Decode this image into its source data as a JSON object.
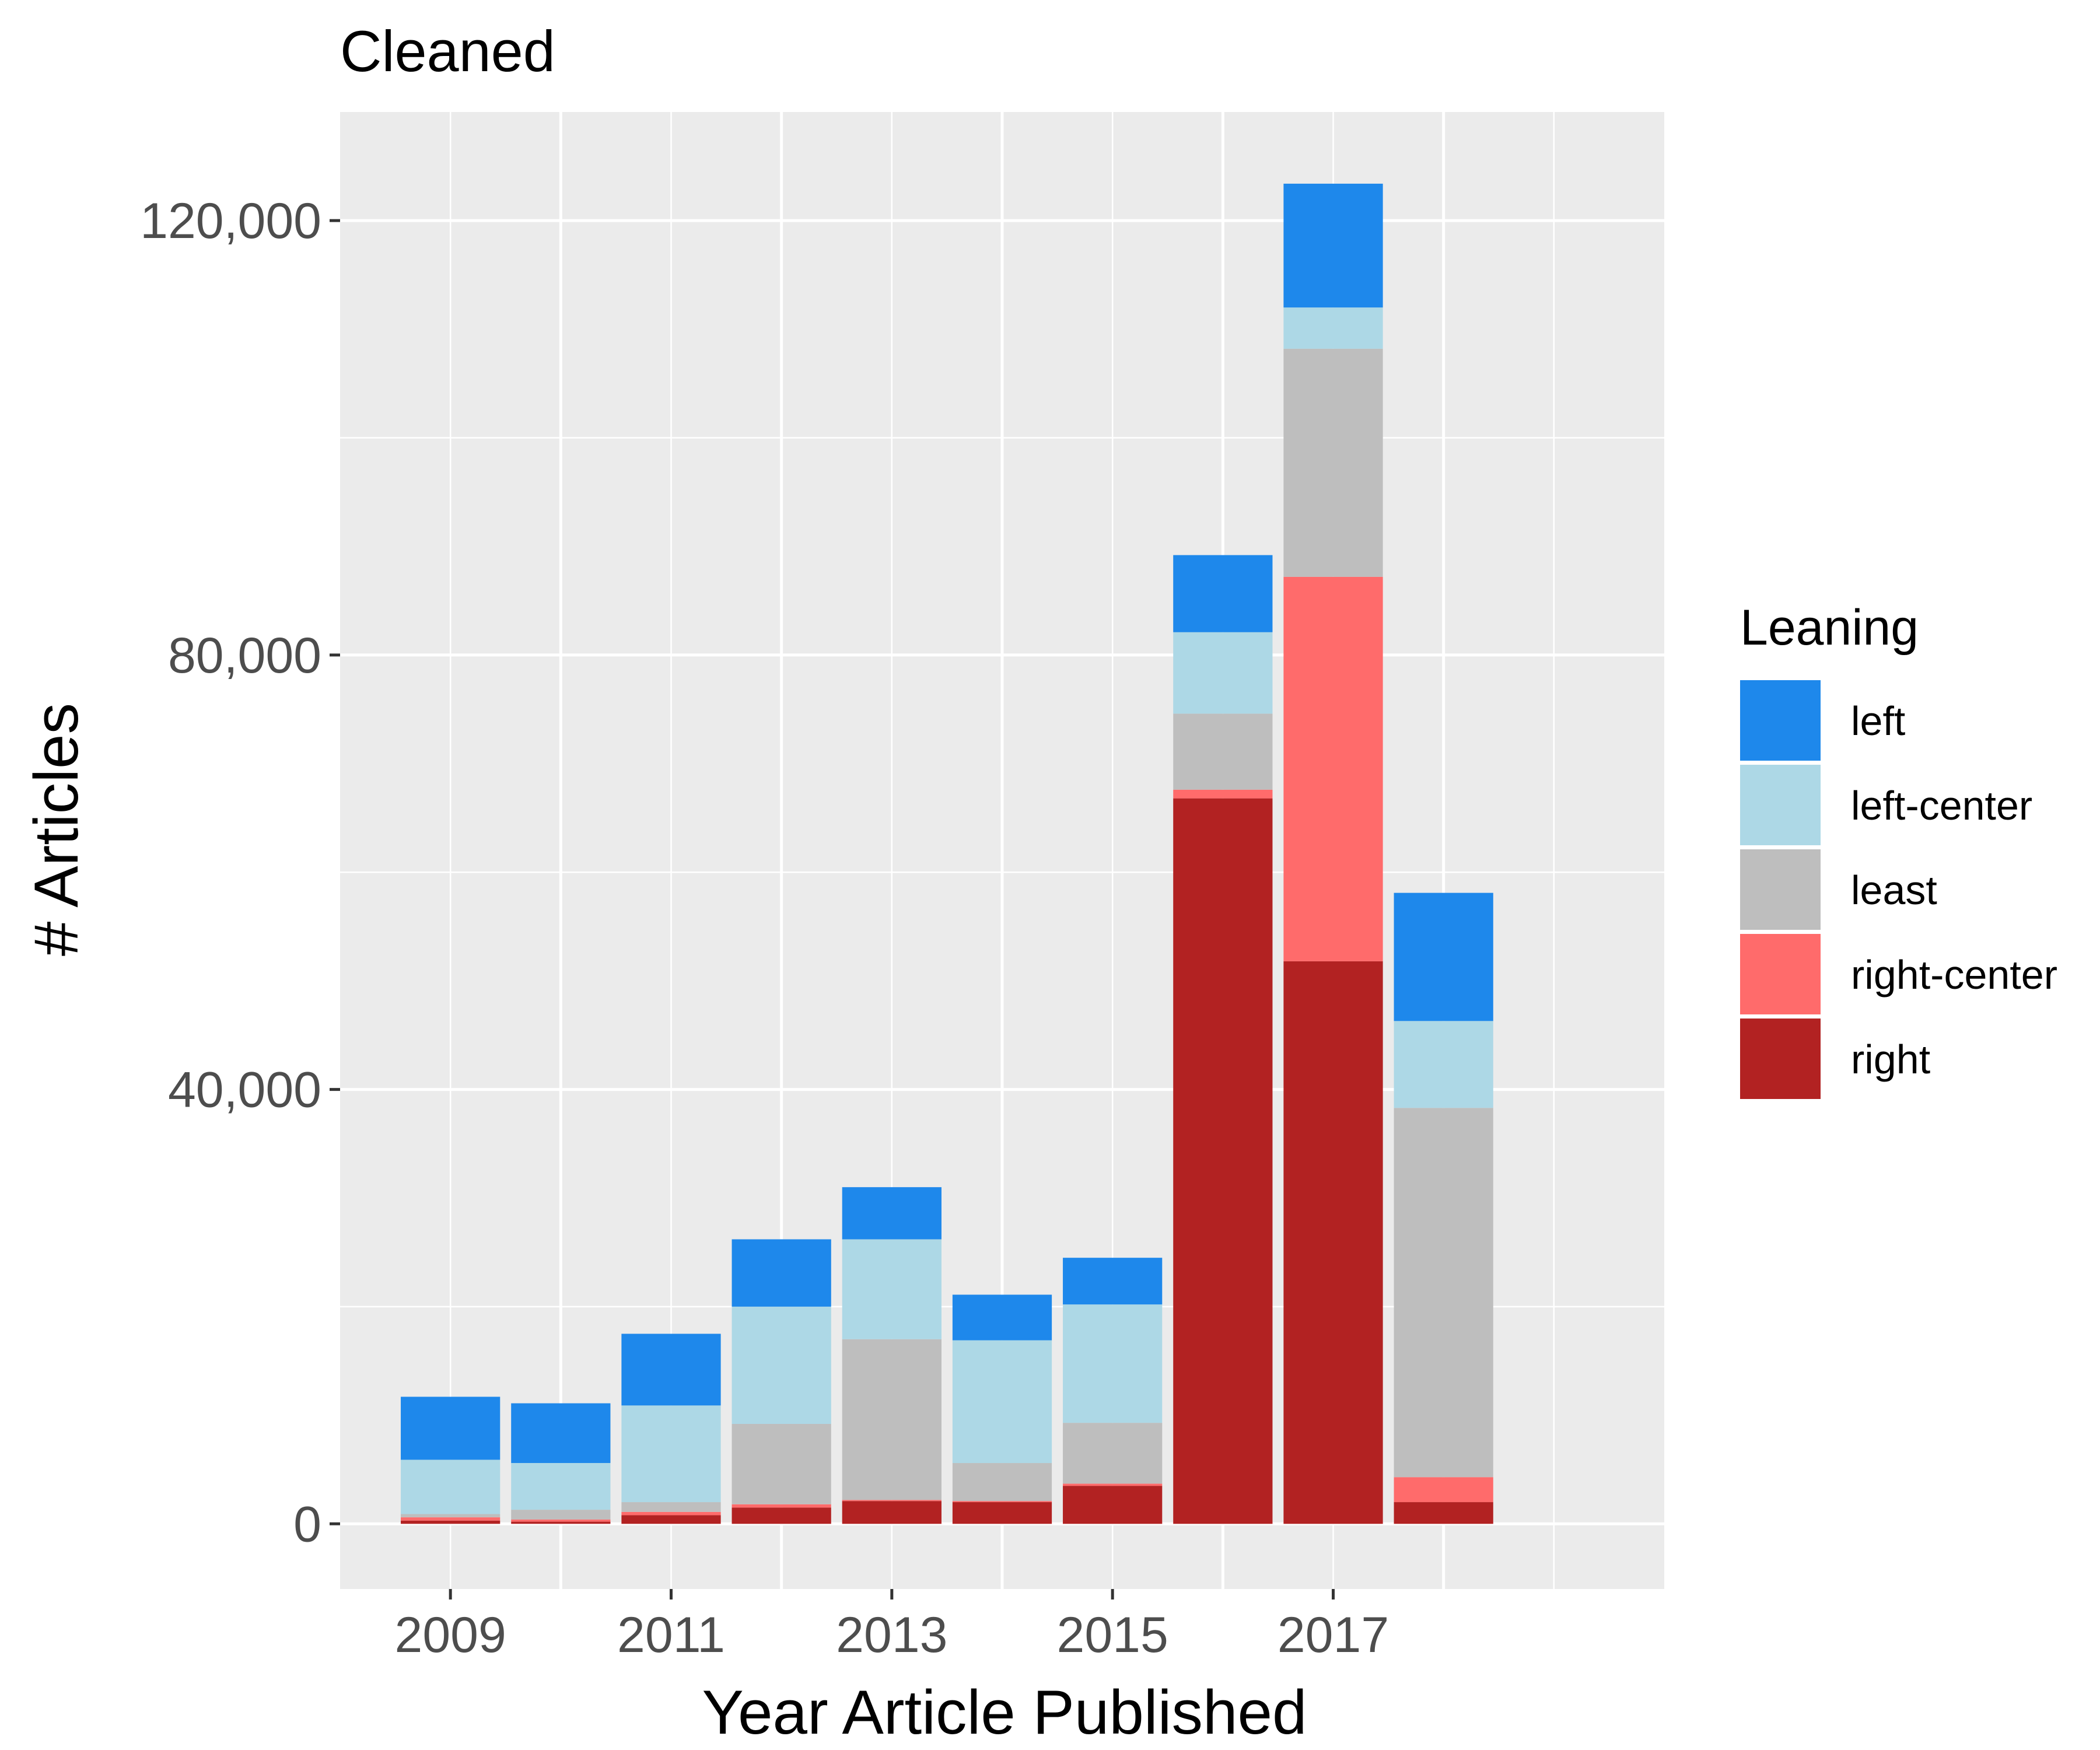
{
  "chart_data": {
    "type": "bar",
    "stacked": true,
    "title": "Cleaned",
    "xlabel": "Year Article Published",
    "ylabel": "# Articles",
    "categories": [
      "2009",
      "2010",
      "2011",
      "2012",
      "2013",
      "2014",
      "2015",
      "2016",
      "2017",
      "2018"
    ],
    "x_tick_labels": [
      "2009",
      "2011",
      "2013",
      "2015",
      "2017"
    ],
    "y_tick_labels": [
      "0",
      "40,000",
      "80,000",
      "120,000"
    ],
    "y_ticks": [
      0,
      40000,
      80000,
      120000
    ],
    "xlim": [
      2008,
      2020
    ],
    "ylim": [
      -6000,
      130000
    ],
    "grid": true,
    "legend": {
      "title": "Leaning",
      "position": "right"
    },
    "series": [
      {
        "name": "right",
        "color": "#B22222",
        "values": [
          300,
          200,
          800,
          1500,
          2100,
          2000,
          3500,
          66800,
          51800,
          2000
        ]
      },
      {
        "name": "right-center",
        "color": "#FF6B6B",
        "values": [
          300,
          200,
          300,
          300,
          100,
          100,
          200,
          800,
          35400,
          2300
        ]
      },
      {
        "name": "least",
        "color": "#BEBEBE",
        "values": [
          300,
          900,
          900,
          7400,
          14800,
          3500,
          5600,
          7000,
          21000,
          34000
        ]
      },
      {
        "name": "left-center",
        "color": "#ADD8E6",
        "values": [
          5000,
          4300,
          8900,
          10800,
          9200,
          11300,
          10900,
          7500,
          3800,
          8000
        ]
      },
      {
        "name": "left",
        "color": "#1E88EB",
        "values": [
          5800,
          5500,
          6600,
          6200,
          4800,
          4200,
          4300,
          7100,
          11400,
          11800
        ]
      }
    ]
  }
}
